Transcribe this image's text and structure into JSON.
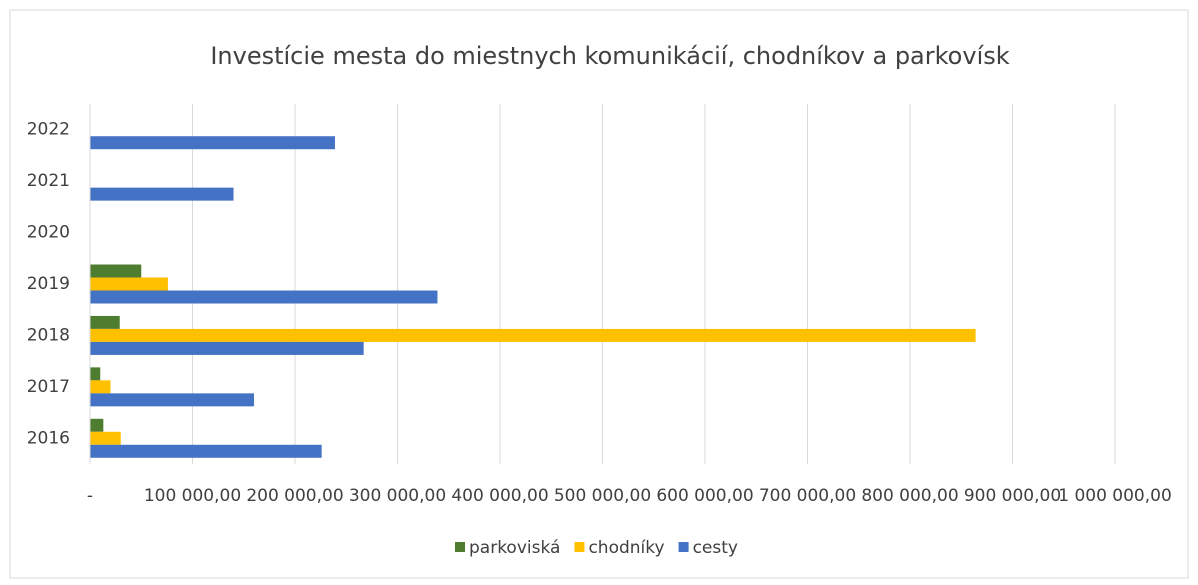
{
  "chart_data": {
    "type": "barh",
    "title": "Investície mesta do miestnych komunikácií, chodníkov a parkovísk",
    "categories": [
      "2016",
      "2017",
      "2018",
      "2019",
      "2020",
      "2021",
      "2022"
    ],
    "series": [
      {
        "name": "parkoviská",
        "color": "#4e7d2f",
        "values": [
          13000,
          10000,
          29000,
          50000,
          0,
          0,
          0
        ]
      },
      {
        "name": "chodníky",
        "color": "#ffc000",
        "values": [
          30000,
          20000,
          864000,
          76000,
          0,
          0,
          0
        ]
      },
      {
        "name": "cesty",
        "color": "#4472c4",
        "values": [
          226000,
          160000,
          267000,
          339000,
          0,
          140000,
          239000
        ]
      }
    ],
    "xlim": [
      0,
      1000000
    ],
    "xticks": [
      {
        "value": 0,
        "label": "-"
      },
      {
        "value": 100000,
        "label": "100 000,00"
      },
      {
        "value": 200000,
        "label": "200 000,00"
      },
      {
        "value": 300000,
        "label": "300 000,00"
      },
      {
        "value": 400000,
        "label": "400 000,00"
      },
      {
        "value": 500000,
        "label": "500 000,00"
      },
      {
        "value": 600000,
        "label": "600 000,00"
      },
      {
        "value": 700000,
        "label": "700 000,00"
      },
      {
        "value": 800000,
        "label": "800 000,00"
      },
      {
        "value": 900000,
        "label": "900 000,00"
      },
      {
        "value": 1000000,
        "label": "1 000 000,00"
      }
    ],
    "grid": true,
    "legend": "bottom"
  }
}
